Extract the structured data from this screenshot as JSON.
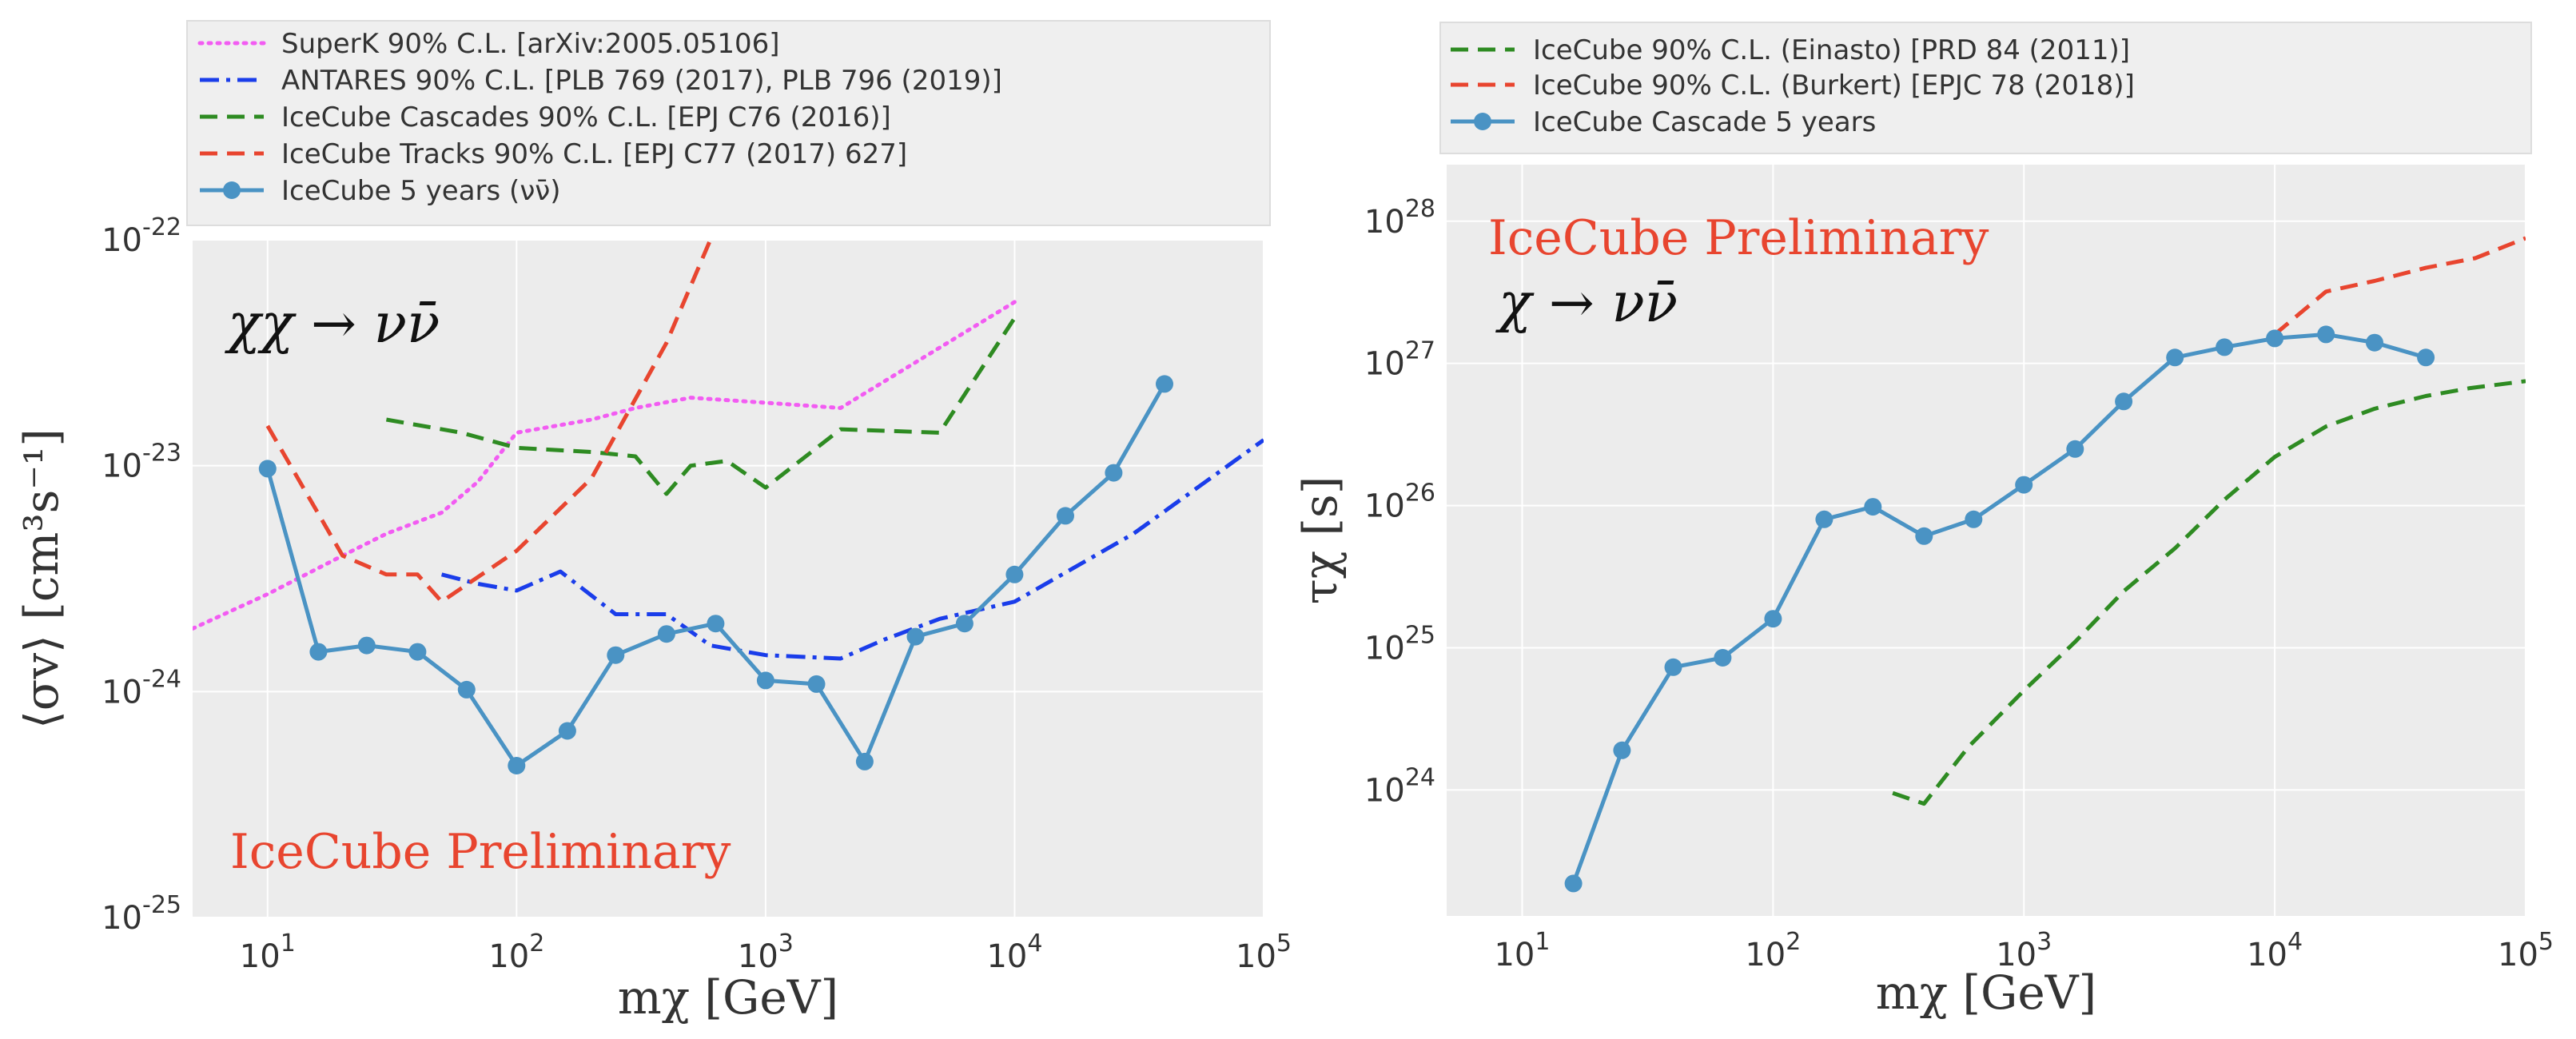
{
  "chart_data": [
    {
      "type": "line",
      "panel": "left",
      "xscale": "log",
      "yscale": "log",
      "xlim": [
        5,
        100000
      ],
      "ylim": [
        1e-25,
        1e-22
      ],
      "xlabel": "mχ  [GeV]",
      "ylabel": "⟨σv⟩  [cm³s⁻¹]",
      "x_ticks": [
        {
          "value": 10,
          "base": "10",
          "exp": "1"
        },
        {
          "value": 100,
          "base": "10",
          "exp": "2"
        },
        {
          "value": 1000,
          "base": "10",
          "exp": "3"
        },
        {
          "value": 10000,
          "base": "10",
          "exp": "4"
        },
        {
          "value": 100000,
          "base": "10",
          "exp": "5"
        }
      ],
      "y_ticks": [
        {
          "value": 1e-25,
          "base": "10",
          "exp": "-25"
        },
        {
          "value": 1e-24,
          "base": "10",
          "exp": "-24"
        },
        {
          "value": 1e-23,
          "base": "10",
          "exp": "-23"
        },
        {
          "value": 1e-22,
          "base": "10",
          "exp": "-22"
        }
      ],
      "grid": true,
      "legend_position": "above",
      "annotations": [
        {
          "text": "χχ → νν̄",
          "position": "top-left"
        },
        {
          "text": "IceCube Preliminary",
          "position": "bottom-left"
        }
      ],
      "series": [
        {
          "name": "SuperK 90% C.L. [arXiv:2005.05106]",
          "color": "#f25cf2",
          "style": "dotted",
          "x": [
            5,
            10,
            20,
            30,
            50,
            70,
            100,
            200,
            300,
            500,
            1000,
            2000,
            10000
          ],
          "y": [
            1.9e-24,
            2.7e-24,
            4e-24,
            5e-24,
            6.2e-24,
            8.5e-24,
            1.4e-23,
            1.6e-23,
            1.8e-23,
            2e-23,
            1.9e-23,
            1.8e-23,
            5.3e-23
          ]
        },
        {
          "name": "ANTARES 90% C.L. [PLB 769 (2017), PLB 796 (2019)]",
          "color": "#1a3dea",
          "style": "dashdot",
          "x": [
            50,
            70,
            100,
            150,
            250,
            400,
            600,
            1000,
            2000,
            3000,
            5000,
            10000,
            30000,
            100000
          ],
          "y": [
            3.3e-24,
            3e-24,
            2.8e-24,
            3.4e-24,
            2.2e-24,
            2.2e-24,
            1.6e-24,
            1.45e-24,
            1.4e-24,
            1.7e-24,
            2.1e-24,
            2.5e-24,
            5e-24,
            1.3e-23
          ]
        },
        {
          "name": "IceCube Cascades 90% C.L. [EPJ C76 (2016)]",
          "color": "#2e8b22",
          "style": "dashed",
          "x": [
            30,
            60,
            100,
            200,
            300,
            400,
            500,
            700,
            1000,
            2000,
            5000,
            10000
          ],
          "y": [
            1.6e-23,
            1.4e-23,
            1.2e-23,
            1.15e-23,
            1.1e-23,
            7.5e-24,
            1e-23,
            1.05e-23,
            8e-24,
            1.45e-23,
            1.4e-23,
            4.5e-23
          ]
        },
        {
          "name": "IceCube Tracks 90% C.L. [EPJ C77 (2017) 627]",
          "color": "#e8452f",
          "style": "dashed",
          "x": [
            10,
            20,
            30,
            40,
            50,
            100,
            200,
            400,
            600
          ],
          "y": [
            1.5e-23,
            4e-24,
            3.3e-24,
            3.3e-24,
            2.5e-24,
            4.2e-24,
            8.8e-24,
            3.5e-23,
            1e-22
          ]
        },
        {
          "name": "IceCube 5 years (νν̄)",
          "color": "#4a93c4",
          "style": "solid-markers",
          "x": [
            10,
            16,
            25,
            40,
            63,
            100,
            160,
            250,
            400,
            630,
            1000,
            1600,
            2500,
            4000,
            6300,
            10000,
            16000,
            25000,
            40000
          ],
          "y": [
            9.7e-24,
            1.5e-24,
            1.6e-24,
            1.5e-24,
            1.02e-24,
            4.7e-25,
            6.7e-25,
            1.45e-24,
            1.8e-24,
            2e-24,
            1.12e-24,
            1.08e-24,
            4.9e-25,
            1.75e-24,
            2e-24,
            3.3e-24,
            6e-24,
            9.3e-24,
            2.3e-23
          ]
        }
      ]
    },
    {
      "type": "line",
      "panel": "right",
      "xscale": "log",
      "yscale": "log",
      "xlim": [
        5,
        100000
      ],
      "ylim": [
        1.3e+23,
        2.5e+28
      ],
      "xlabel": "mχ  [GeV]",
      "ylabel": "τχ  [s]",
      "x_ticks": [
        {
          "value": 10,
          "base": "10",
          "exp": "1"
        },
        {
          "value": 100,
          "base": "10",
          "exp": "2"
        },
        {
          "value": 1000,
          "base": "10",
          "exp": "3"
        },
        {
          "value": 10000,
          "base": "10",
          "exp": "4"
        },
        {
          "value": 100000,
          "base": "10",
          "exp": "5"
        }
      ],
      "y_ticks": [
        {
          "value": 1e+24,
          "base": "10",
          "exp": "24"
        },
        {
          "value": 1e+25,
          "base": "10",
          "exp": "25"
        },
        {
          "value": 1e+26,
          "base": "10",
          "exp": "26"
        },
        {
          "value": 1e+27,
          "base": "10",
          "exp": "27"
        },
        {
          "value": 1e+28,
          "base": "10",
          "exp": "28"
        }
      ],
      "grid": true,
      "legend_position": "above",
      "annotations": [
        {
          "text": "IceCube Preliminary",
          "position": "top-left"
        },
        {
          "text": "χ → νν̄",
          "position": "top-left"
        }
      ],
      "series": [
        {
          "name": "IceCube 90% C.L. (Einasto) [PRD 84 (2011)]",
          "color": "#2e8b22",
          "style": "dashed",
          "x": [
            300,
            400,
            600,
            1000,
            1600,
            2500,
            4000,
            6300,
            10000,
            16000,
            25000,
            40000,
            60000,
            100000
          ],
          "y": [
            9.5e+23,
            8e+23,
            2e+24,
            5e+24,
            1.1e+25,
            2.5e+25,
            5e+25,
            1.1e+26,
            2.2e+26,
            3.6e+26,
            4.8e+26,
            5.9e+26,
            6.7e+26,
            7.5e+26
          ]
        },
        {
          "name": "IceCube 90% C.L. (Burkert) [EPJC 78 (2018)]",
          "color": "#e8452f",
          "style": "dashed",
          "x": [
            10000,
            16000,
            25000,
            40000,
            63000,
            100000
          ],
          "y": [
            1.6e+27,
            3.2e+27,
            3.8e+27,
            4.7e+27,
            5.5e+27,
            7.6e+27
          ]
        },
        {
          "name": "IceCube Cascade 5 years",
          "color": "#4a93c4",
          "style": "solid-markers",
          "x": [
            16,
            25,
            40,
            63,
            100,
            160,
            250,
            400,
            630,
            1000,
            1600,
            2500,
            4000,
            6300,
            10000,
            16000,
            25000,
            40000
          ],
          "y": [
            2.2e+23,
            1.9e+24,
            7.3e+24,
            8.5e+24,
            1.6e+25,
            8e+25,
            9.8e+25,
            6.1e+25,
            8e+25,
            1.4e+26,
            2.5e+26,
            5.4e+26,
            1.1e+27,
            1.3e+27,
            1.5e+27,
            1.6e+27,
            1.4e+27,
            1.1e+27
          ]
        }
      ]
    }
  ]
}
